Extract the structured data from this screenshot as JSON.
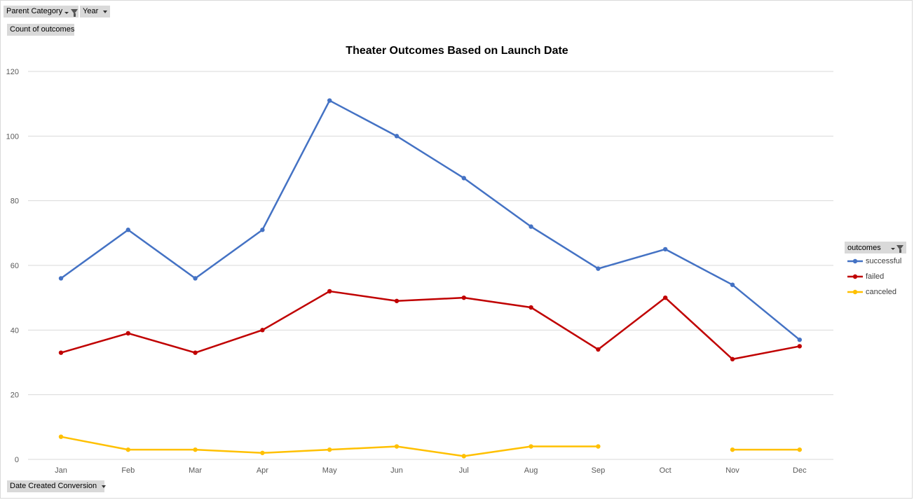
{
  "pivot": {
    "parent_category": "Parent Category",
    "year": "Year",
    "count_of_outcomes": "Count of outcomes",
    "date_created_conversion": "Date Created Conversion",
    "legend_field": "outcomes"
  },
  "chart_data": {
    "type": "line",
    "title": "Theater Outcomes Based on Launch Date",
    "xlabel": "",
    "ylabel": "",
    "categories": [
      "Jan",
      "Feb",
      "Mar",
      "Apr",
      "May",
      "Jun",
      "Jul",
      "Aug",
      "Sep",
      "Oct",
      "Nov",
      "Dec"
    ],
    "ylim": [
      0,
      120
    ],
    "yticks": [
      0,
      20,
      40,
      60,
      80,
      100,
      120
    ],
    "grid": true,
    "legend_position": "right",
    "series": [
      {
        "name": "successful",
        "color": "#4472c4",
        "values": [
          56,
          71,
          56,
          71,
          111,
          100,
          87,
          72,
          59,
          65,
          54,
          37
        ]
      },
      {
        "name": "failed",
        "color": "#c00000",
        "values": [
          33,
          39,
          33,
          40,
          52,
          49,
          50,
          47,
          34,
          50,
          31,
          35
        ]
      },
      {
        "name": "canceled",
        "color": "#ffc000",
        "values": [
          7,
          3,
          3,
          2,
          3,
          4,
          1,
          4,
          4,
          null,
          3,
          3
        ]
      }
    ]
  }
}
